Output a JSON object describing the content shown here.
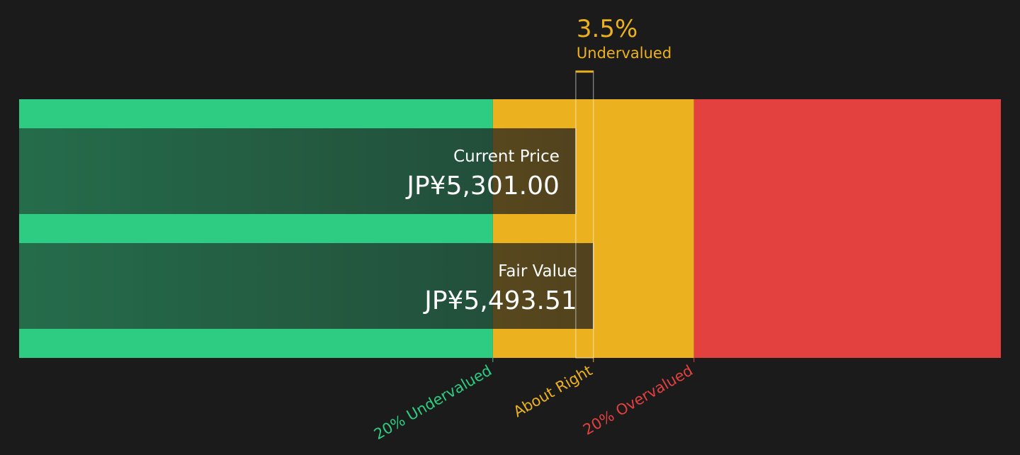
{
  "chart_data": {
    "type": "valuation",
    "annotation": {
      "value": 3.5,
      "label": "3.5%"
    },
    "verdict": "Undervalued",
    "annotation_color": "#ecb11f",
    "categories": [
      "Current Price",
      "Fair Value"
    ],
    "values": [
      5301.0,
      5493.51
    ],
    "value_labels": [
      "JP¥5,301.00",
      "JP¥5,493.51"
    ],
    "zones": [
      {
        "label": "20% Undervalued",
        "value": 4394.81,
        "color": "#2ecc82"
      },
      {
        "label": "About Right",
        "value": 5493.51,
        "color": "#ecb11f"
      },
      {
        "label": "20% Overvalued",
        "value": 6592.21,
        "color": "#e34040"
      }
    ],
    "xlim": [
      -782,
      9946
    ]
  }
}
